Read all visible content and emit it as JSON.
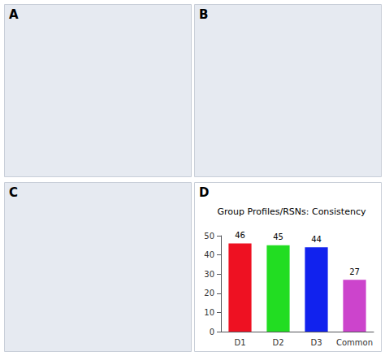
{
  "chart_data": {
    "type": "bar",
    "title": "Group Profiles/RSNs: Consistency",
    "categories": [
      "D1",
      "D2",
      "D3",
      "Common"
    ],
    "values": [
      46,
      45,
      44,
      27
    ],
    "colors": [
      "#ee1122",
      "#22dd22",
      "#1122ee",
      "#cc44cc"
    ],
    "ylim": [
      0,
      50
    ],
    "yticks": [
      0,
      10,
      20,
      30,
      40,
      50
    ],
    "grid": false,
    "data_labels": true,
    "annotations": [
      "A",
      "B",
      "C",
      "D"
    ]
  }
}
